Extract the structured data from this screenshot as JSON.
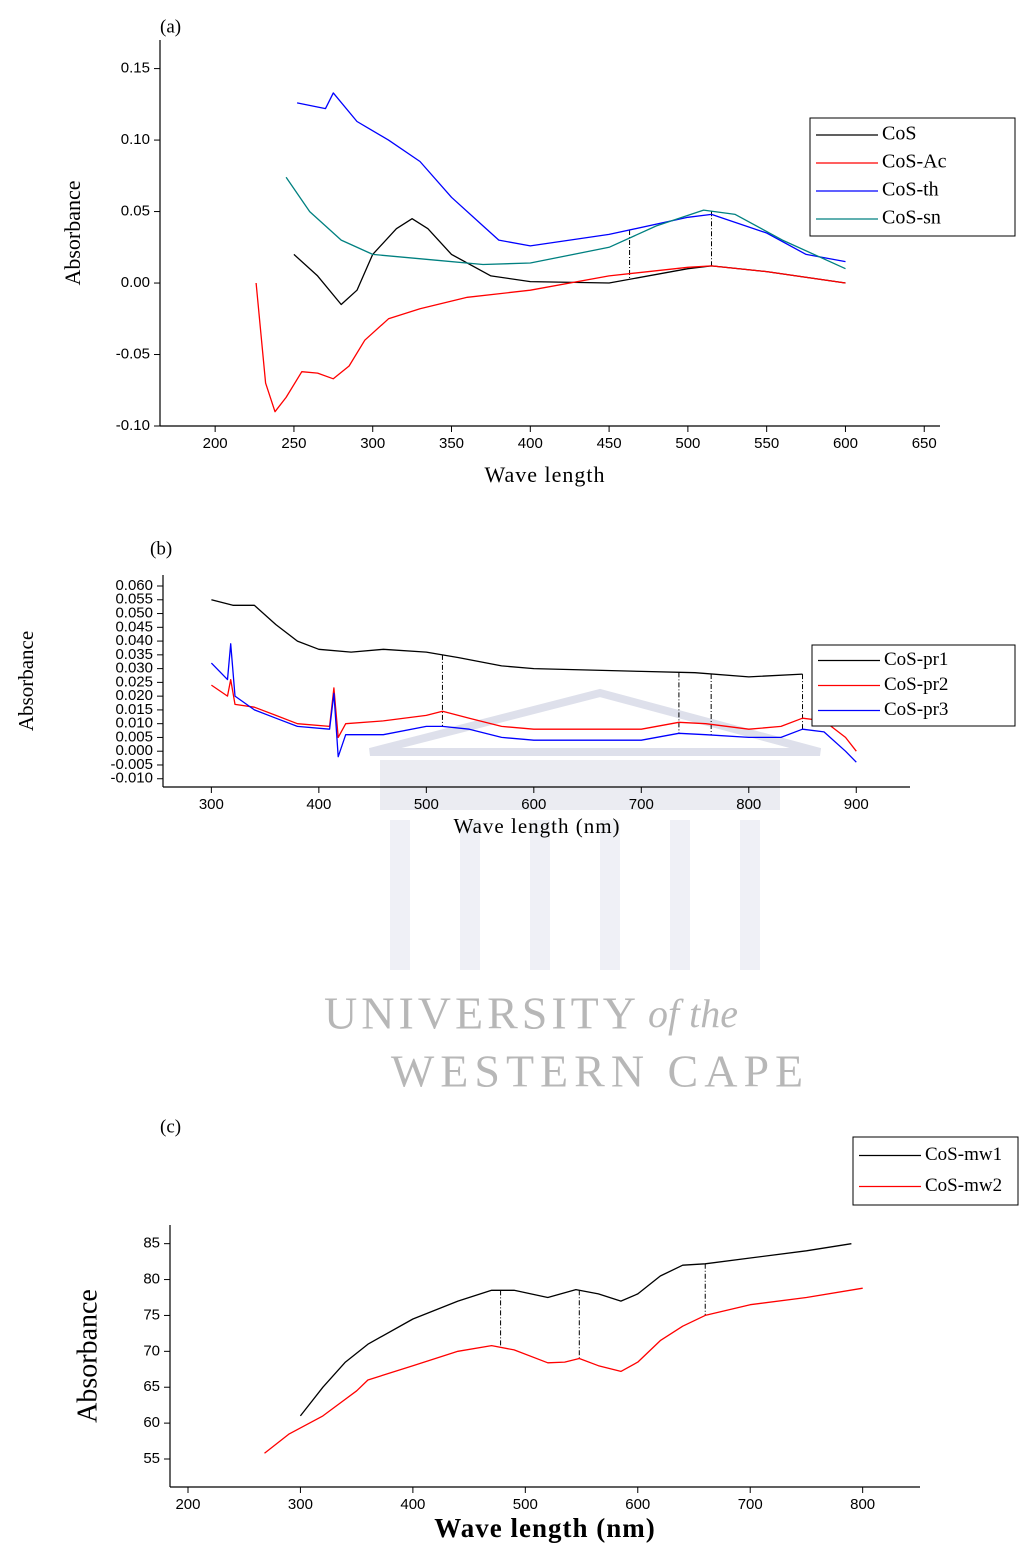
{
  "chart_data": [
    {
      "type": "line",
      "title": "(a)",
      "xlabel": "Wave length",
      "ylabel": "Absorbance",
      "xlim": [
        165,
        660
      ],
      "ylim": [
        -0.1,
        0.17
      ],
      "xticks": [
        200,
        250,
        300,
        350,
        400,
        450,
        500,
        550,
        600,
        650
      ],
      "yticks": [
        {
          "value": -0.1,
          "label": "-0.10"
        },
        -0.05,
        {
          "value": 0,
          "label": "0.00"
        },
        0.05,
        {
          "value": 0.1,
          "label": "0.10"
        },
        0.15
      ],
      "markers": [
        463,
        515
      ],
      "series": [
        {
          "name": "CoS",
          "color": "#000000",
          "x": [
            250,
            265,
            280,
            290,
            300,
            315,
            325,
            335,
            350,
            375,
            400,
            450,
            500,
            515,
            550,
            600
          ],
          "values": [
            0.02,
            0.005,
            -0.015,
            -0.005,
            0.02,
            0.038,
            0.045,
            0.038,
            0.02,
            0.005,
            0.001,
            0.0,
            0.01,
            0.012,
            0.008,
            0.0
          ]
        },
        {
          "name": "CoS-Ac",
          "color": "#ff0000",
          "x": [
            226,
            232,
            238,
            245,
            255,
            265,
            275,
            285,
            295,
            310,
            330,
            360,
            400,
            450,
            500,
            515,
            550,
            600
          ],
          "values": [
            0.0,
            -0.07,
            -0.09,
            -0.08,
            -0.062,
            -0.063,
            -0.067,
            -0.058,
            -0.04,
            -0.025,
            -0.018,
            -0.01,
            -0.005,
            0.005,
            0.011,
            0.012,
            0.008,
            0.0
          ]
        },
        {
          "name": "CoS-th",
          "color": "#0000ff",
          "x": [
            252,
            270,
            275,
            290,
            310,
            330,
            350,
            370,
            380,
            400,
            450,
            500,
            515,
            550,
            575,
            600
          ],
          "values": [
            0.126,
            0.122,
            0.133,
            0.113,
            0.1,
            0.085,
            0.06,
            0.04,
            0.03,
            0.026,
            0.034,
            0.046,
            0.048,
            0.035,
            0.02,
            0.015
          ]
        },
        {
          "name": "CoS-sn",
          "color": "#008080",
          "x": [
            245,
            260,
            280,
            300,
            340,
            370,
            400,
            450,
            480,
            510,
            530,
            560,
            600
          ],
          "values": [
            0.074,
            0.05,
            0.03,
            0.02,
            0.016,
            0.013,
            0.014,
            0.025,
            0.04,
            0.051,
            0.048,
            0.03,
            0.01
          ]
        }
      ]
    },
    {
      "type": "line",
      "title": "(b)",
      "xlabel": "Wave length (nm)",
      "ylabel": "Absorbance",
      "xlim": [
        255,
        950
      ],
      "ylim": [
        -0.013,
        0.064
      ],
      "xticks": [
        300,
        400,
        500,
        600,
        700,
        800,
        900
      ],
      "yticks": [
        {
          "value": -0.01,
          "label": "-0.010"
        },
        {
          "value": -0.005,
          "label": "-0.005"
        },
        {
          "value": 0,
          "label": "0.000"
        },
        {
          "value": 0.005,
          "label": "0.005"
        },
        {
          "value": 0.01,
          "label": "0.010"
        },
        {
          "value": 0.015,
          "label": "0.015"
        },
        {
          "value": 0.02,
          "label": "0.020"
        },
        {
          "value": 0.025,
          "label": "0.025"
        },
        {
          "value": 0.03,
          "label": "0.030"
        },
        {
          "value": 0.035,
          "label": "0.035"
        },
        {
          "value": 0.04,
          "label": "0.040"
        },
        {
          "value": 0.045,
          "label": "0.045"
        },
        {
          "value": 0.05,
          "label": "0.050"
        },
        {
          "value": 0.055,
          "label": "0.055"
        },
        {
          "value": 0.06,
          "label": "0.060"
        }
      ],
      "markers": [
        515,
        735,
        765,
        850
      ],
      "series": [
        {
          "name": "CoS-pr1",
          "color": "#000000",
          "x": [
            300,
            320,
            340,
            360,
            380,
            400,
            430,
            460,
            500,
            530,
            570,
            600,
            650,
            700,
            750,
            800,
            850
          ],
          "values": [
            0.055,
            0.053,
            0.053,
            0.046,
            0.04,
            0.037,
            0.036,
            0.037,
            0.036,
            0.034,
            0.031,
            0.03,
            0.0295,
            0.029,
            0.0285,
            0.027,
            0.028
          ]
        },
        {
          "name": "CoS-pr2",
          "color": "#ff0000",
          "x": [
            300,
            315,
            318,
            322,
            340,
            360,
            380,
            410,
            414,
            418,
            425,
            460,
            500,
            515,
            540,
            570,
            600,
            650,
            700,
            735,
            760,
            800,
            830,
            850,
            870,
            890,
            900
          ],
          "values": [
            0.024,
            0.02,
            0.026,
            0.017,
            0.016,
            0.013,
            0.01,
            0.009,
            0.023,
            0.005,
            0.01,
            0.011,
            0.013,
            0.0145,
            0.012,
            0.009,
            0.008,
            0.008,
            0.008,
            0.0105,
            0.01,
            0.008,
            0.009,
            0.012,
            0.011,
            0.005,
            0.0
          ]
        },
        {
          "name": "CoS-pr3",
          "color": "#0000ff",
          "x": [
            300,
            315,
            318,
            322,
            340,
            360,
            380,
            410,
            414,
            418,
            425,
            460,
            500,
            515,
            540,
            570,
            600,
            650,
            700,
            735,
            760,
            800,
            830,
            850,
            870,
            890,
            900
          ],
          "values": [
            0.032,
            0.026,
            0.039,
            0.02,
            0.015,
            0.012,
            0.009,
            0.008,
            0.021,
            -0.002,
            0.006,
            0.006,
            0.009,
            0.009,
            0.008,
            0.005,
            0.004,
            0.004,
            0.004,
            0.0065,
            0.006,
            0.005,
            0.005,
            0.008,
            0.007,
            0.0,
            -0.004
          ]
        }
      ]
    },
    {
      "type": "line",
      "title": "(c)",
      "xlabel": "Wave length (nm)",
      "ylabel": "Absorbance",
      "xlim": [
        184,
        851
      ],
      "ylim": [
        51.1,
        87.6
      ],
      "xticks": [
        200,
        300,
        400,
        500,
        600,
        700,
        800
      ],
      "yticks": [
        55,
        60,
        65,
        70,
        75,
        80,
        85
      ],
      "markers": [
        478,
        548,
        660
      ],
      "series": [
        {
          "name": "CoS-mw1",
          "color": "#000000",
          "x": [
            300,
            320,
            340,
            360,
            400,
            440,
            470,
            490,
            520,
            545,
            565,
            585,
            600,
            620,
            640,
            660,
            700,
            750,
            790
          ],
          "values": [
            61,
            65,
            68.5,
            71,
            74.5,
            77,
            78.5,
            78.5,
            77.5,
            78.6,
            78,
            77,
            78,
            80.5,
            82,
            82.2,
            83,
            84,
            85
          ]
        },
        {
          "name": "CoS-mw2",
          "color": "#ff0000",
          "x": [
            268,
            290,
            320,
            350,
            360,
            400,
            440,
            470,
            490,
            520,
            535,
            548,
            565,
            585,
            600,
            620,
            640,
            660,
            700,
            750,
            800
          ],
          "values": [
            55.8,
            58.5,
            61,
            64.5,
            66,
            68,
            70,
            70.8,
            70.2,
            68.4,
            68.5,
            69,
            68,
            67.2,
            68.5,
            71.5,
            73.5,
            75,
            76.5,
            77.5,
            78.8
          ]
        }
      ]
    }
  ],
  "watermark": {
    "line1": "UNIVERSITY",
    "line1_tail": "of the",
    "line2": "WESTERN CAPE"
  }
}
